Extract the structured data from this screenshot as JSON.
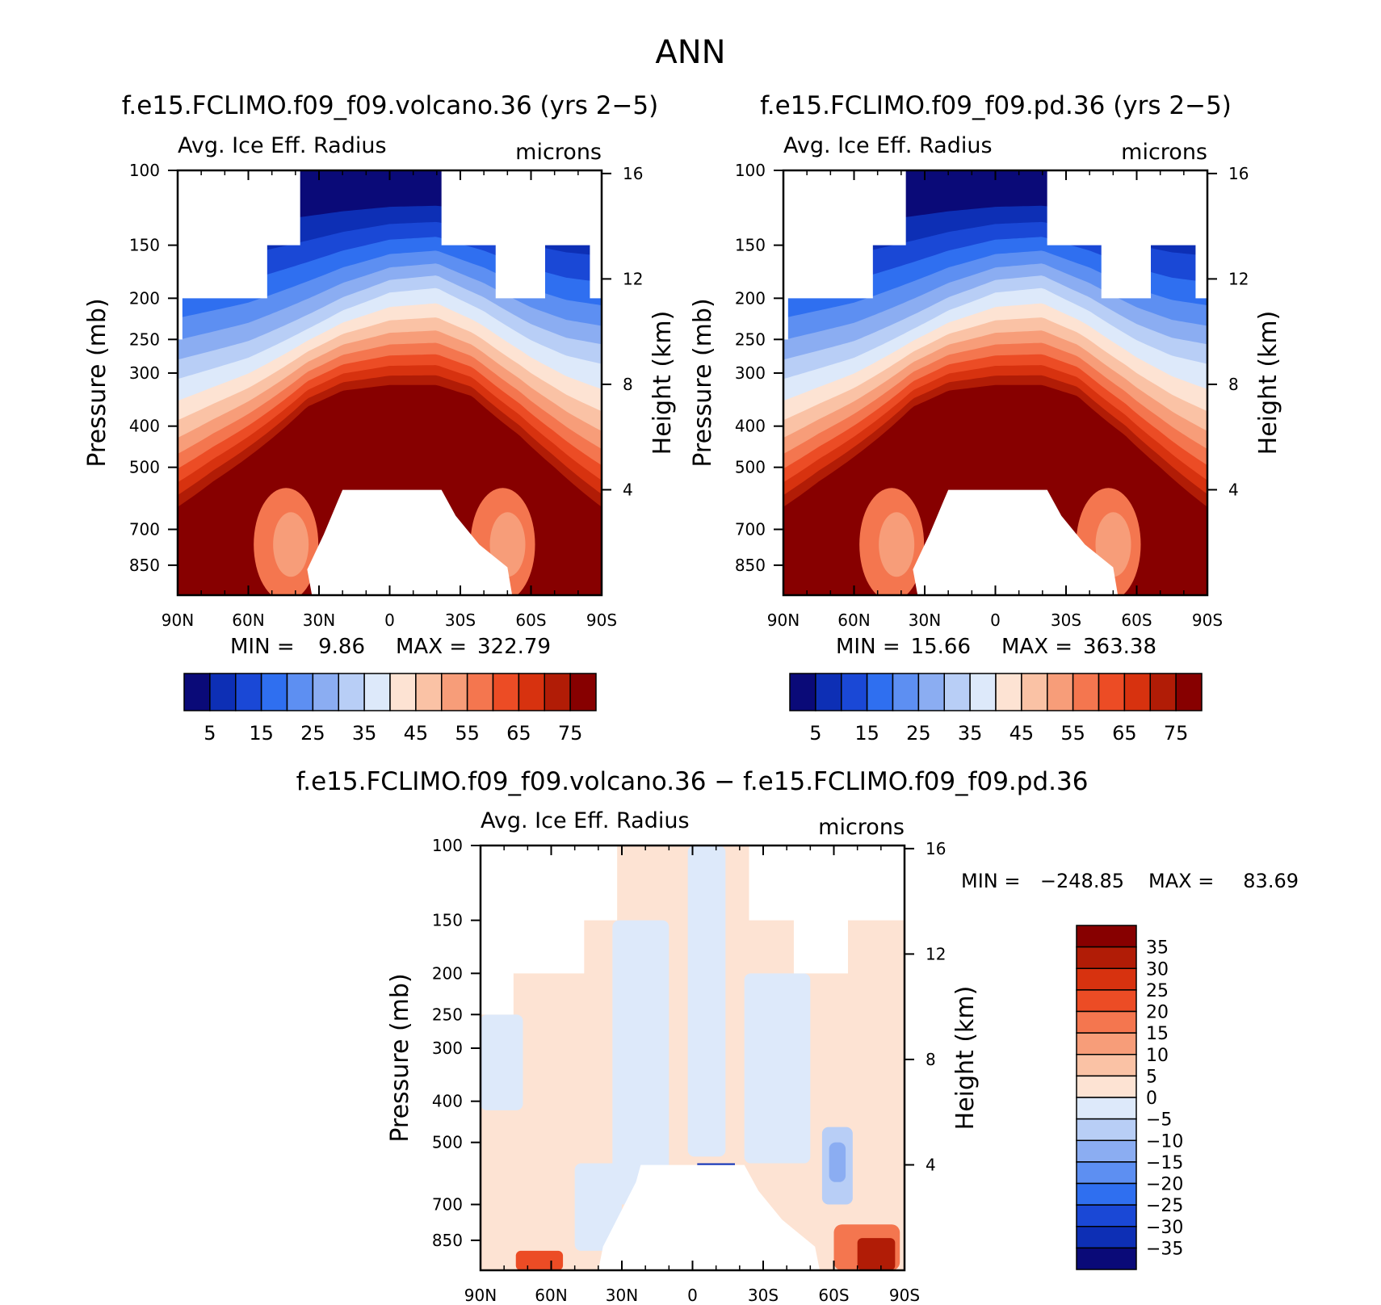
{
  "main_title": "ANN",
  "chart_data": [
    {
      "type": "heatmap",
      "id": "p1",
      "title": "f.e15.FCLIMO.f09_f09.volcano.36 (yrs 2−5)",
      "subtitle_left": "Avg. Ice Eff. Radius",
      "subtitle_right": "microns",
      "ylabel": "Pressure (mb)",
      "ylabel_right": "Height (km)",
      "x_ticks": [
        "90N",
        "60N",
        "30N",
        "0",
        "30S",
        "60S",
        "90S"
      ],
      "y_ticks": [
        "100",
        "150",
        "200",
        "250",
        "300",
        "400",
        "500",
        "700",
        "850"
      ],
      "y_right_ticks": [
        "16",
        "12",
        "8",
        "4"
      ],
      "ylim": [
        1000,
        100
      ],
      "y_scale": "log",
      "xlim": [
        "90N",
        "90S"
      ],
      "min_label": "MIN =",
      "min_value": "9.86",
      "max_label": "MAX =",
      "max_value": "322.79",
      "color_levels": [
        "#0a0a78",
        "#0d2fb5",
        "#1a48d6",
        "#2f6ff0",
        "#5d8ff2",
        "#8badf2",
        "#b8cef6",
        "#dde9fa",
        "#fde3d3",
        "#fac2a5",
        "#f79d79",
        "#f4764f",
        "#ec4c25",
        "#d7320f",
        "#b11c06",
        "#870000"
      ],
      "colorbar_labels": [
        "5",
        "15",
        "25",
        "35",
        "45",
        "55",
        "65",
        "75"
      ]
    },
    {
      "type": "heatmap",
      "id": "p2",
      "title": "f.e15.FCLIMO.f09_f09.pd.36 (yrs 2−5)",
      "subtitle_left": "Avg. Ice Eff. Radius",
      "subtitle_right": "microns",
      "ylabel": "Pressure (mb)",
      "ylabel_right": "Height (km)",
      "x_ticks": [
        "90N",
        "60N",
        "30N",
        "0",
        "30S",
        "60S",
        "90S"
      ],
      "y_ticks": [
        "100",
        "150",
        "200",
        "250",
        "300",
        "400",
        "500",
        "700",
        "850"
      ],
      "y_right_ticks": [
        "16",
        "12",
        "8",
        "4"
      ],
      "ylim": [
        1000,
        100
      ],
      "y_scale": "log",
      "xlim": [
        "90N",
        "90S"
      ],
      "min_label": "MIN =",
      "min_value": "15.66",
      "max_label": "MAX =",
      "max_value": "363.38",
      "color_levels": [
        "#0a0a78",
        "#0d2fb5",
        "#1a48d6",
        "#2f6ff0",
        "#5d8ff2",
        "#8badf2",
        "#b8cef6",
        "#dde9fa",
        "#fde3d3",
        "#fac2a5",
        "#f79d79",
        "#f4764f",
        "#ec4c25",
        "#d7320f",
        "#b11c06",
        "#870000"
      ],
      "colorbar_labels": [
        "5",
        "15",
        "25",
        "35",
        "45",
        "55",
        "65",
        "75"
      ]
    },
    {
      "type": "heatmap",
      "id": "p3",
      "title": "f.e15.FCLIMO.f09_f09.volcano.36 − f.e15.FCLIMO.f09_f09.pd.36",
      "subtitle_left": "Avg. Ice Eff. Radius",
      "subtitle_right": "microns",
      "ylabel": "Pressure (mb)",
      "ylabel_right": "Height (km)",
      "x_ticks": [
        "90N",
        "60N",
        "30N",
        "0",
        "30S",
        "60S",
        "90S"
      ],
      "y_ticks": [
        "100",
        "150",
        "200",
        "250",
        "300",
        "400",
        "500",
        "700",
        "850"
      ],
      "y_right_ticks": [
        "16",
        "12",
        "8",
        "4"
      ],
      "ylim": [
        1000,
        100
      ],
      "y_scale": "log",
      "xlim": [
        "90N",
        "90S"
      ],
      "min_label": "MIN =",
      "min_value": "−248.85",
      "max_label": "MAX =",
      "max_value": "83.69",
      "color_levels": [
        "#870000",
        "#b11c06",
        "#d7320f",
        "#ec4c25",
        "#f4764f",
        "#f79d79",
        "#fac2a5",
        "#fde3d3",
        "#dde9fa",
        "#b8cef6",
        "#8badf2",
        "#5d8ff2",
        "#2f6ff0",
        "#1a48d6",
        "#0d2fb5",
        "#0a0a78"
      ],
      "colorbar_labels": [
        "35",
        "30",
        "25",
        "20",
        "15",
        "10",
        "5",
        "0",
        "−5",
        "−10",
        "−15",
        "−20",
        "−25",
        "−30",
        "−35"
      ]
    }
  ]
}
